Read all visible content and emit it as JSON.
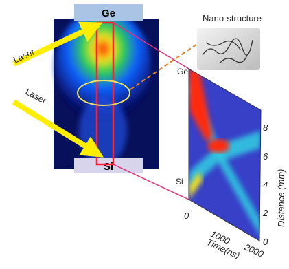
{
  "source": {
    "top_label": "Ge",
    "bottom_label": "Si",
    "laser_labels": [
      "Laser",
      "Laser"
    ]
  },
  "inset": {
    "title": "Nano-structure"
  },
  "streak_plot": {
    "top_label": "Ge",
    "bottom_label": "Si",
    "x_axis": {
      "title": "Time(ns)",
      "ticks": [
        0,
        1000,
        2000
      ]
    },
    "y_axis": {
      "title": "Distance (mm)",
      "ticks": [
        0,
        2,
        4,
        6,
        8
      ]
    }
  }
}
